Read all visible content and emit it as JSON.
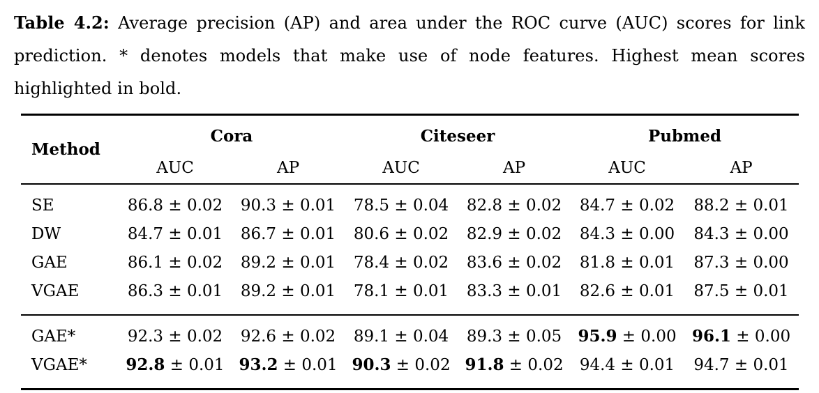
{
  "caption": {
    "label": "Table 4.2:",
    "text": "Average precision (AP) and area under the ROC curve (AUC) scores for link prediction. * denotes models that make use of node features. Highest mean scores highlighted in bold."
  },
  "table": {
    "method_header": "Method",
    "plus_minus": "±",
    "groups": [
      "Cora",
      "Citeseer",
      "Pubmed"
    ],
    "sub_headers": [
      "AUC",
      "AP"
    ],
    "sections": [
      {
        "name": "baseline-models",
        "rows": [
          {
            "method": "SE",
            "values": [
              {
                "mean": "86.8",
                "std": "0.02",
                "bold": false
              },
              {
                "mean": "90.3",
                "std": "0.01",
                "bold": false
              },
              {
                "mean": "78.5",
                "std": "0.04",
                "bold": false
              },
              {
                "mean": "82.8",
                "std": "0.02",
                "bold": false
              },
              {
                "mean": "84.7",
                "std": "0.02",
                "bold": false
              },
              {
                "mean": "88.2",
                "std": "0.01",
                "bold": false
              }
            ]
          },
          {
            "method": "DW",
            "values": [
              {
                "mean": "84.7",
                "std": "0.01",
                "bold": false
              },
              {
                "mean": "86.7",
                "std": "0.01",
                "bold": false
              },
              {
                "mean": "80.6",
                "std": "0.02",
                "bold": false
              },
              {
                "mean": "82.9",
                "std": "0.02",
                "bold": false
              },
              {
                "mean": "84.3",
                "std": "0.00",
                "bold": false
              },
              {
                "mean": "84.3",
                "std": "0.00",
                "bold": false
              }
            ]
          },
          {
            "method": "GAE",
            "values": [
              {
                "mean": "86.1",
                "std": "0.02",
                "bold": false
              },
              {
                "mean": "89.2",
                "std": "0.01",
                "bold": false
              },
              {
                "mean": "78.4",
                "std": "0.02",
                "bold": false
              },
              {
                "mean": "83.6",
                "std": "0.02",
                "bold": false
              },
              {
                "mean": "81.8",
                "std": "0.01",
                "bold": false
              },
              {
                "mean": "87.3",
                "std": "0.00",
                "bold": false
              }
            ]
          },
          {
            "method": "VGAE",
            "values": [
              {
                "mean": "86.3",
                "std": "0.01",
                "bold": false
              },
              {
                "mean": "89.2",
                "std": "0.01",
                "bold": false
              },
              {
                "mean": "78.1",
                "std": "0.01",
                "bold": false
              },
              {
                "mean": "83.3",
                "std": "0.01",
                "bold": false
              },
              {
                "mean": "82.6",
                "std": "0.01",
                "bold": false
              },
              {
                "mean": "87.5",
                "std": "0.01",
                "bold": false
              }
            ]
          }
        ]
      },
      {
        "name": "feature-models",
        "rows": [
          {
            "method": "GAE*",
            "values": [
              {
                "mean": "92.3",
                "std": "0.02",
                "bold": false
              },
              {
                "mean": "92.6",
                "std": "0.02",
                "bold": false
              },
              {
                "mean": "89.1",
                "std": "0.04",
                "bold": false
              },
              {
                "mean": "89.3",
                "std": "0.05",
                "bold": false
              },
              {
                "mean": "95.9",
                "std": "0.00",
                "bold": true
              },
              {
                "mean": "96.1",
                "std": "0.00",
                "bold": true
              }
            ]
          },
          {
            "method": "VGAE*",
            "values": [
              {
                "mean": "92.8",
                "std": "0.01",
                "bold": true
              },
              {
                "mean": "93.2",
                "std": "0.01",
                "bold": true
              },
              {
                "mean": "90.3",
                "std": "0.02",
                "bold": true
              },
              {
                "mean": "91.8",
                "std": "0.02",
                "bold": true
              },
              {
                "mean": "94.4",
                "std": "0.01",
                "bold": false
              },
              {
                "mean": "94.7",
                "std": "0.01",
                "bold": false
              }
            ]
          }
        ]
      }
    ]
  }
}
